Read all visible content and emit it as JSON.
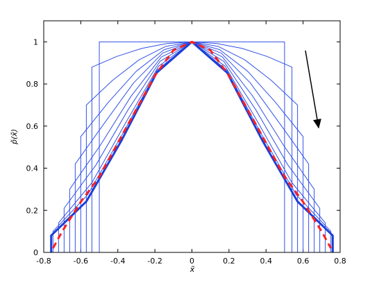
{
  "chart_data": {
    "type": "line",
    "xlabel": "x̃",
    "ylabel": "p̃(x̃)",
    "xlim": [
      -0.8,
      0.8
    ],
    "xticks": [
      -0.8,
      -0.6,
      -0.4,
      -0.2,
      0,
      0.2,
      0.4,
      0.6,
      0.8
    ],
    "ylim": [
      0,
      1.1
    ],
    "yticks": [
      0,
      0.2,
      0.4,
      0.6,
      0.8,
      1
    ],
    "series": [
      {
        "color": "#3050e8",
        "x": [
          -0.5,
          -0.5,
          -0.375,
          -0.25,
          -0.125,
          0,
          0.125,
          0.25,
          0.375,
          0.5,
          0.5
        ],
        "values": [
          0,
          1,
          1,
          1,
          1,
          1,
          1,
          1,
          1,
          1,
          0
        ]
      },
      {
        "color": "#3050e8",
        "x": [
          -0.54,
          -0.54,
          -0.405,
          -0.27,
          -0.135,
          0,
          0.135,
          0.27,
          0.405,
          0.54,
          0.54
        ],
        "values": [
          0,
          0.88,
          0.931,
          0.969,
          0.992,
          1,
          0.992,
          0.969,
          0.931,
          0.88,
          0
        ]
      },
      {
        "color": "#3050e8",
        "x": [
          -0.57,
          -0.57,
          -0.4275,
          -0.285,
          -0.1425,
          0,
          0.1425,
          0.285,
          0.4275,
          0.57,
          0.57
        ],
        "values": [
          0,
          0.7,
          0.818,
          0.915,
          0.978,
          1,
          0.978,
          0.915,
          0.818,
          0.7,
          0
        ]
      },
      {
        "color": "#3050e8",
        "x": [
          -0.6,
          -0.6,
          -0.45,
          -0.3,
          -0.15,
          0,
          0.15,
          0.3,
          0.45,
          0.6,
          0.6
        ],
        "values": [
          0,
          0.55,
          0.714,
          0.861,
          0.963,
          1,
          0.963,
          0.861,
          0.714,
          0.55,
          0
        ]
      },
      {
        "color": "#3050e8",
        "x": [
          -0.63,
          -0.63,
          -0.4725,
          -0.315,
          -0.1575,
          0,
          0.1575,
          0.315,
          0.4725,
          0.63,
          0.63
        ],
        "values": [
          0,
          0.42,
          0.614,
          0.805,
          0.947,
          1,
          0.947,
          0.805,
          0.614,
          0.42,
          0
        ]
      },
      {
        "color": "#3050e8",
        "x": [
          -0.66,
          -0.66,
          -0.495,
          -0.33,
          -0.165,
          0,
          0.165,
          0.33,
          0.495,
          0.66,
          0.66
        ],
        "values": [
          0,
          0.3,
          0.508,
          0.74,
          0.928,
          1,
          0.928,
          0.74,
          0.508,
          0.3,
          0
        ]
      },
      {
        "color": "#3050e8",
        "x": [
          -0.69,
          -0.69,
          -0.5175,
          -0.345,
          -0.1725,
          0,
          0.1725,
          0.345,
          0.5175,
          0.69,
          0.69
        ],
        "values": [
          0,
          0.21,
          0.416,
          0.677,
          0.907,
          1,
          0.907,
          0.677,
          0.416,
          0.21,
          0
        ]
      },
      {
        "color": "#3050e8",
        "x": [
          -0.72,
          -0.72,
          -0.54,
          -0.36,
          -0.18,
          0,
          0.18,
          0.36,
          0.54,
          0.72,
          0.72
        ],
        "values": [
          0,
          0.14,
          0.331,
          0.612,
          0.884,
          1,
          0.884,
          0.612,
          0.331,
          0.14,
          0
        ]
      },
      {
        "color": "#3050e8",
        "x": [
          -0.75,
          -0.75,
          -0.5625,
          -0.375,
          -0.1875,
          0,
          0.1875,
          0.375,
          0.5625,
          0.75,
          0.75
        ],
        "values": [
          0,
          0.1,
          0.274,
          0.562,
          0.866,
          1,
          0.866,
          0.562,
          0.274,
          0.1,
          0
        ]
      },
      {
        "color": "#1d3fd6",
        "width": 3,
        "x": [
          -0.76,
          -0.76,
          -0.57,
          -0.38,
          -0.19,
          0,
          0.19,
          0.38,
          0.57,
          0.76,
          0.76
        ],
        "values": [
          0,
          0.08,
          0.242,
          0.532,
          0.854,
          1,
          0.854,
          0.532,
          0.242,
          0.08,
          0
        ]
      },
      {
        "color": "#ff2020",
        "width": 3,
        "dashed": true,
        "x": [
          -0.75,
          -0.7,
          -0.6,
          -0.5,
          -0.4,
          -0.3,
          -0.2,
          -0.1,
          0,
          0.1,
          0.2,
          0.3,
          0.4,
          0.5,
          0.6,
          0.7,
          0.75
        ],
        "values": [
          0.02,
          0.1,
          0.24,
          0.36,
          0.52,
          0.68,
          0.84,
          0.96,
          1,
          0.96,
          0.84,
          0.68,
          0.52,
          0.36,
          0.24,
          0.1,
          0.02
        ]
      }
    ]
  }
}
